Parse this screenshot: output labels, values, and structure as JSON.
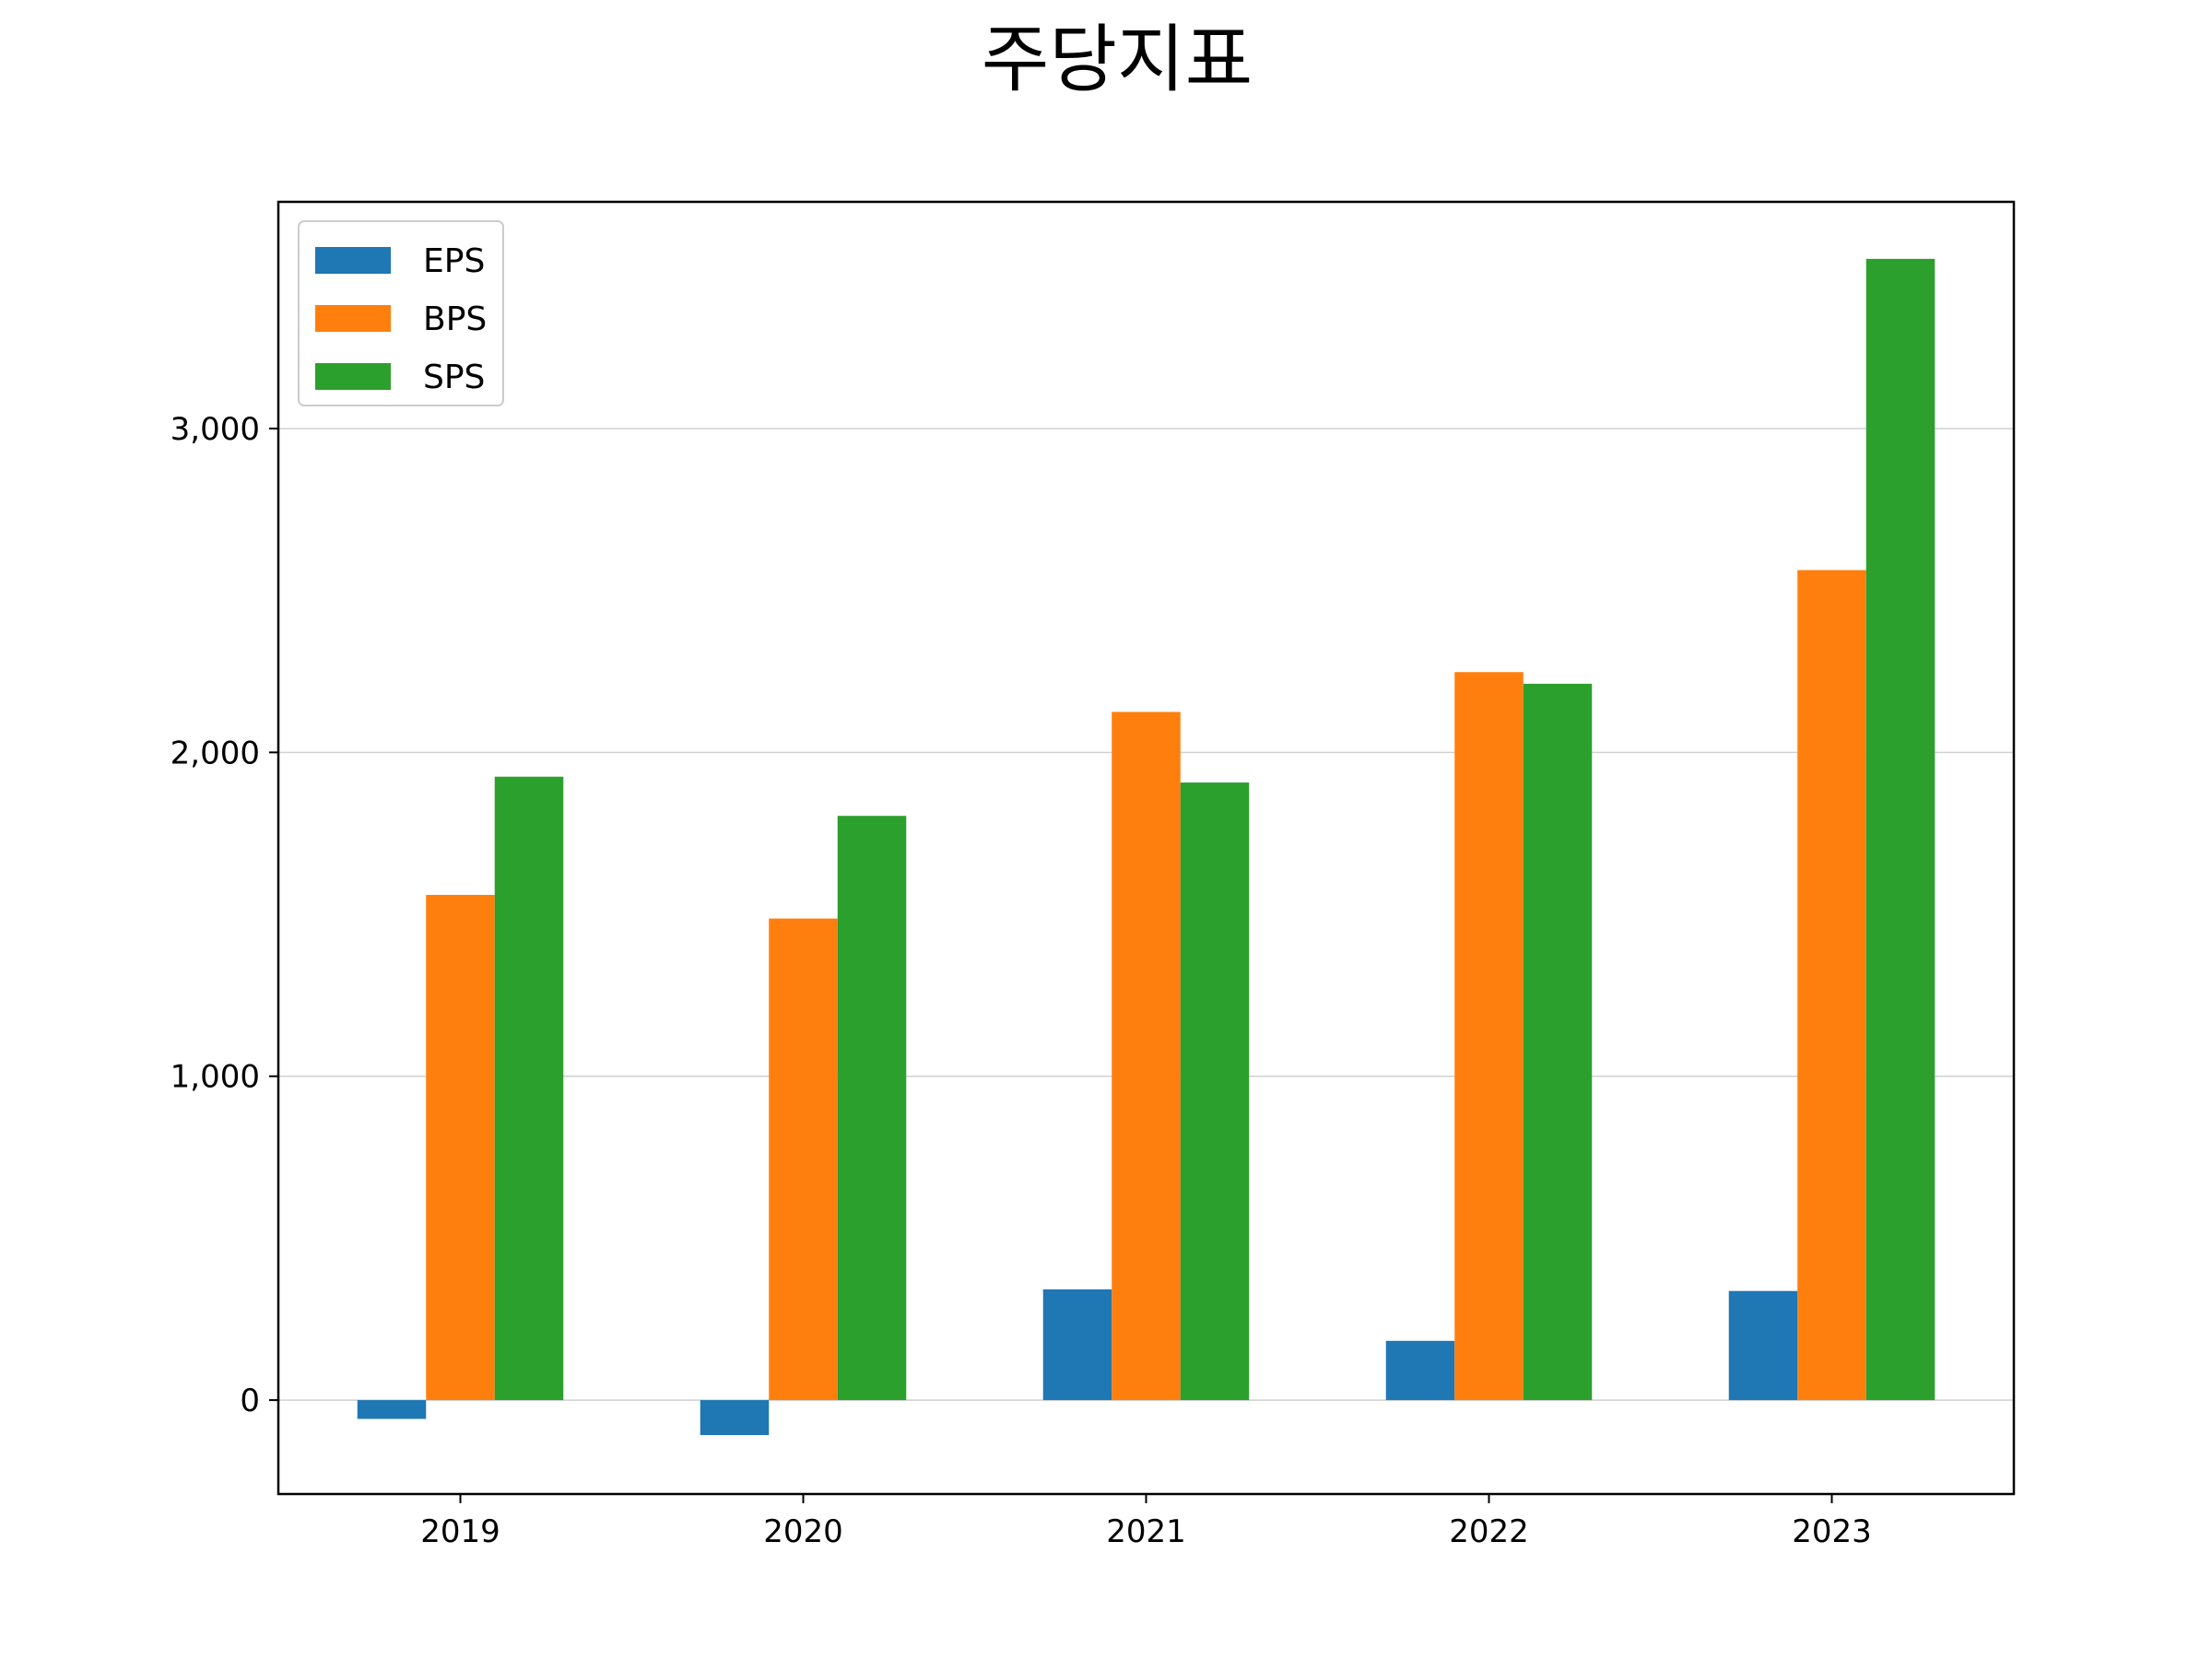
{
  "chart_data": {
    "type": "bar",
    "title": "주당지표",
    "xlabel": "",
    "ylabel": "",
    "categories": [
      "2019",
      "2020",
      "2021",
      "2022",
      "2023"
    ],
    "series": [
      {
        "name": "EPS",
        "color": "#1f77b4",
        "values": [
          -58,
          -108,
          342,
          183,
          337
        ]
      },
      {
        "name": "BPS",
        "color": "#ff7f0e",
        "values": [
          1560,
          1487,
          2125,
          2248,
          2563
        ]
      },
      {
        "name": "SPS",
        "color": "#2ca02c",
        "values": [
          1925,
          1804,
          1907,
          2212,
          3524
        ]
      }
    ],
    "ylim": [
      -290,
      3700
    ],
    "yticks": [
      0,
      1000,
      2000,
      3000
    ],
    "ytick_labels": [
      "0",
      "1,000",
      "2,000",
      "3,000"
    ],
    "grid": "y",
    "legend": "top-left"
  }
}
